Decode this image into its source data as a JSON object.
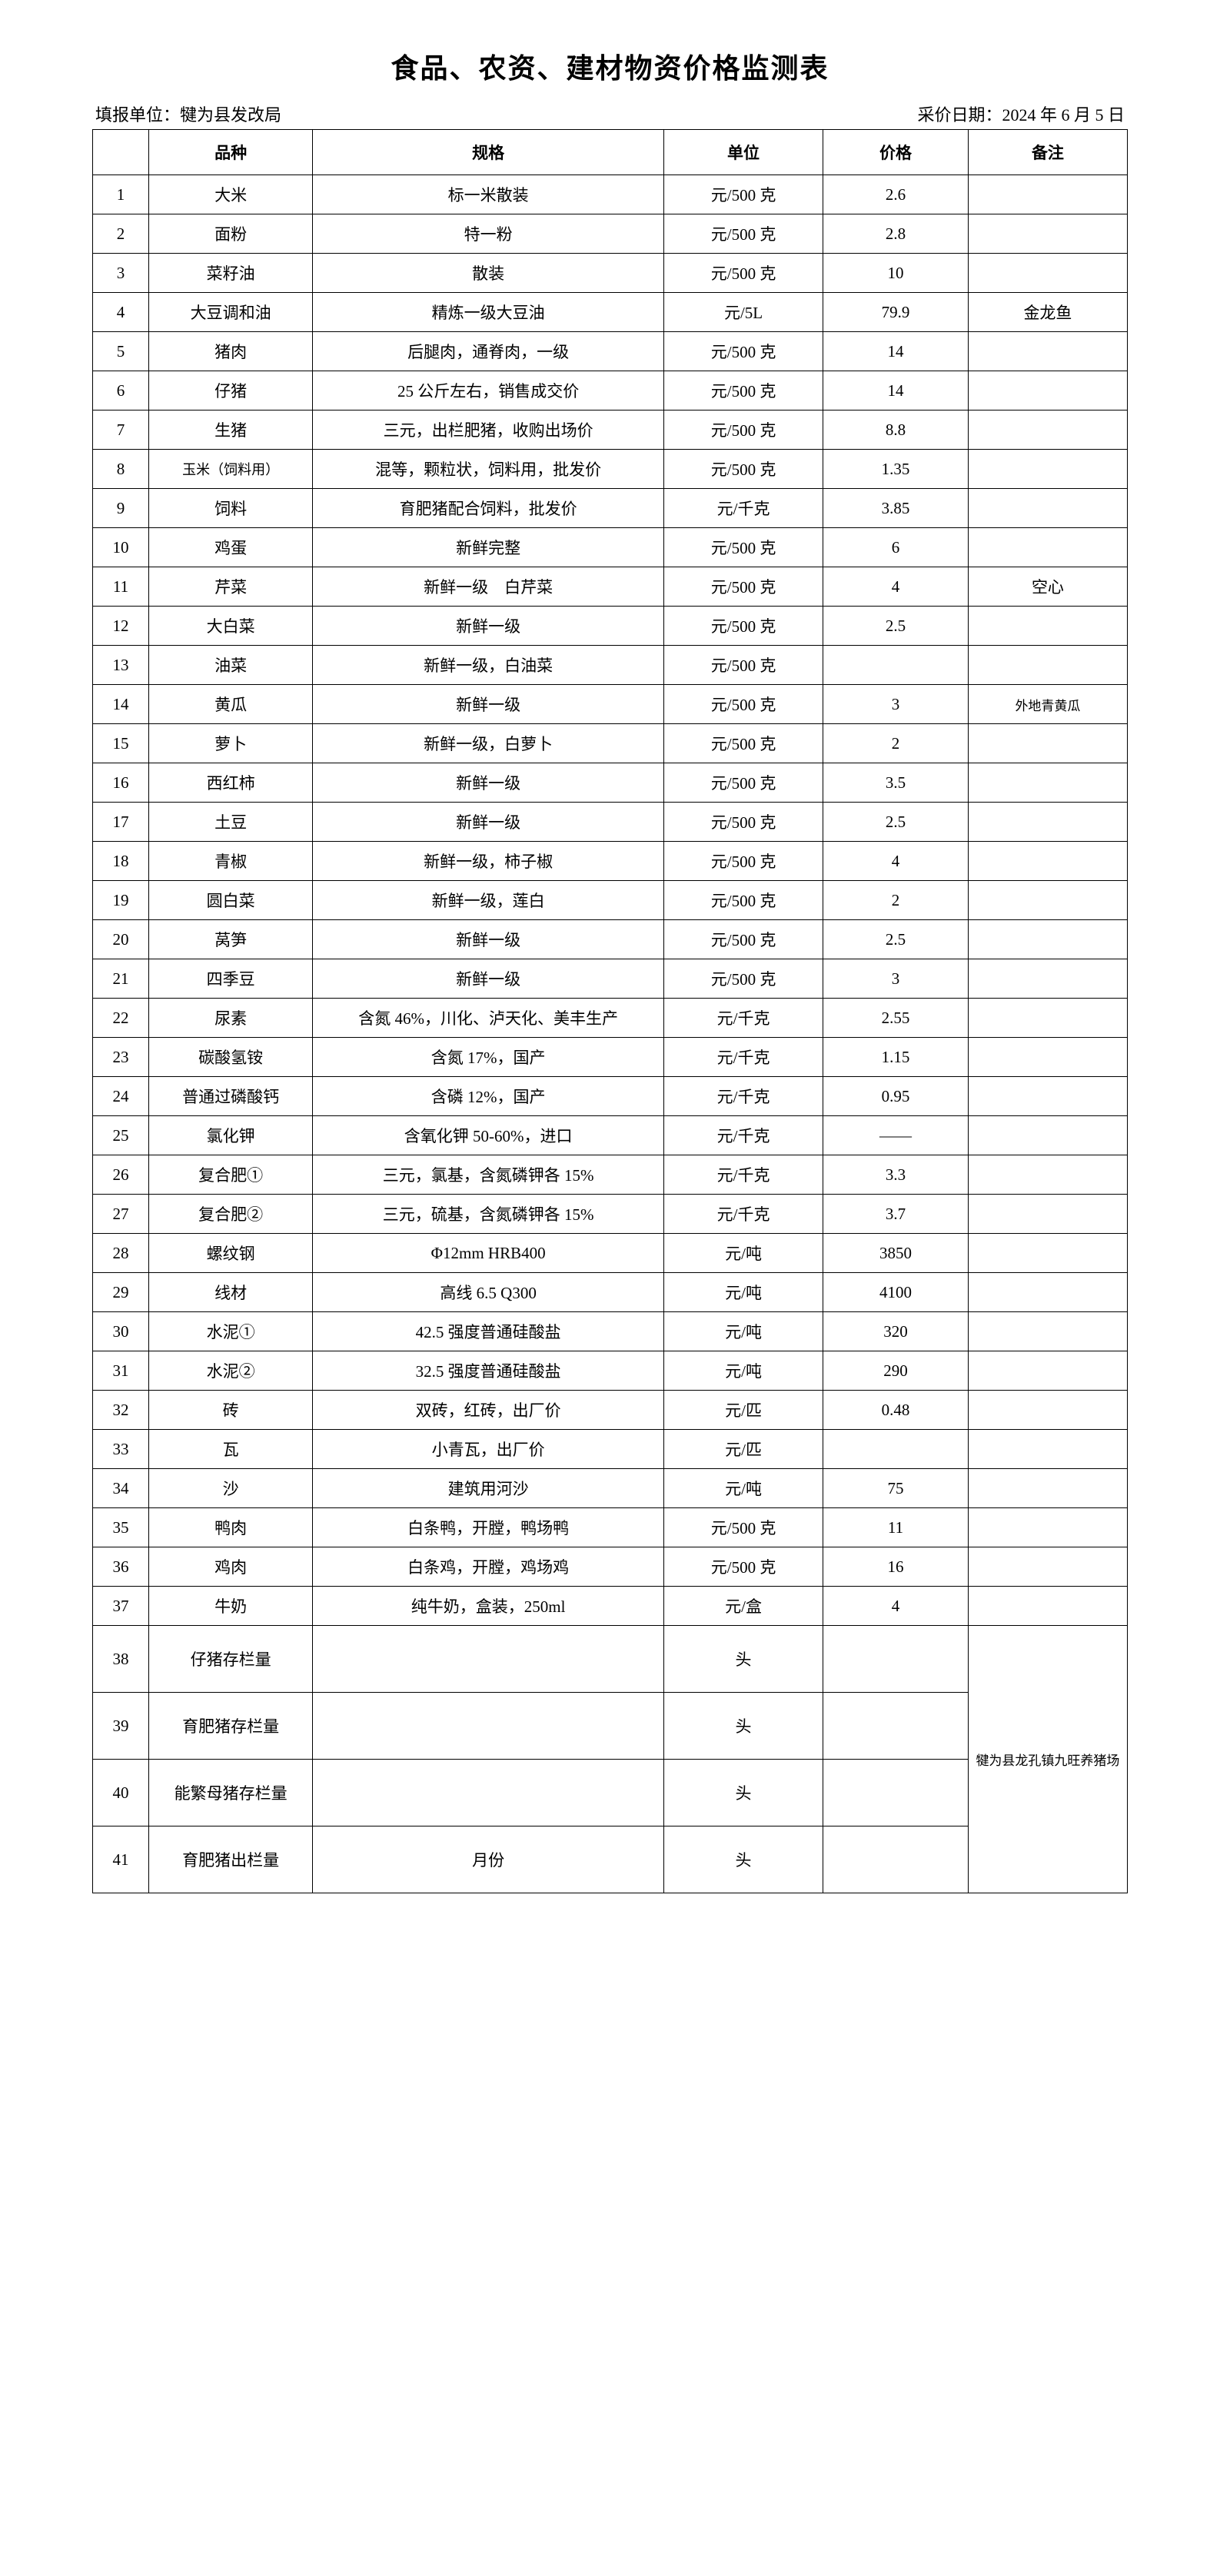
{
  "title": "食品、农资、建材物资价格监测表",
  "reporter_label": "填报单位：犍为县发改局",
  "date_label": "采价日期：2024 年 6 月 5 日",
  "headers": {
    "idx": "",
    "name": "品种",
    "spec": "规格",
    "unit": "单位",
    "price": "价格",
    "note": "备注"
  },
  "merged_note": "犍为县龙孔镇九旺养猪场",
  "rows": [
    {
      "idx": "1",
      "name": "大米",
      "spec": "标一米散装",
      "unit": "元/500 克",
      "price": "2.6",
      "note": ""
    },
    {
      "idx": "2",
      "name": "面粉",
      "spec": "特一粉",
      "unit": "元/500 克",
      "price": "2.8",
      "note": ""
    },
    {
      "idx": "3",
      "name": "菜籽油",
      "spec": "散装",
      "unit": "元/500 克",
      "price": "10",
      "note": ""
    },
    {
      "idx": "4",
      "name": "大豆调和油",
      "spec": "精炼一级大豆油",
      "unit": "元/5L",
      "price": "79.9",
      "note": "金龙鱼"
    },
    {
      "idx": "5",
      "name": "猪肉",
      "spec": "后腿肉，通脊肉，一级",
      "unit": "元/500 克",
      "price": "14",
      "note": ""
    },
    {
      "idx": "6",
      "name": "仔猪",
      "spec": "25 公斤左右，销售成交价",
      "unit": "元/500 克",
      "price": "14",
      "note": ""
    },
    {
      "idx": "7",
      "name": "生猪",
      "spec": "三元，出栏肥猪，收购出场价",
      "unit": "元/500 克",
      "price": "8.8",
      "note": ""
    },
    {
      "idx": "8",
      "name": "玉米（饲料用）",
      "spec": "混等，颗粒状，饲料用，批发价",
      "unit": "元/500 克",
      "price": "1.35",
      "note": "",
      "name_small": true
    },
    {
      "idx": "9",
      "name": "饲料",
      "spec": "育肥猪配合饲料，批发价",
      "unit": "元/千克",
      "price": "3.85",
      "note": ""
    },
    {
      "idx": "10",
      "name": "鸡蛋",
      "spec": "新鲜完整",
      "unit": "元/500 克",
      "price": "6",
      "note": ""
    },
    {
      "idx": "11",
      "name": "芹菜",
      "spec": "新鲜一级　白芹菜",
      "unit": "元/500 克",
      "price": "4",
      "note": "空心"
    },
    {
      "idx": "12",
      "name": "大白菜",
      "spec": "新鲜一级",
      "unit": "元/500 克",
      "price": "2.5",
      "note": ""
    },
    {
      "idx": "13",
      "name": "油菜",
      "spec": "新鲜一级，白油菜",
      "unit": "元/500 克",
      "price": "",
      "note": ""
    },
    {
      "idx": "14",
      "name": "黄瓜",
      "spec": "新鲜一级",
      "unit": "元/500 克",
      "price": "3",
      "note": "外地青黄瓜",
      "note_small": true
    },
    {
      "idx": "15",
      "name": "萝卜",
      "spec": "新鲜一级，白萝卜",
      "unit": "元/500 克",
      "price": "2",
      "note": ""
    },
    {
      "idx": "16",
      "name": "西红柿",
      "spec": "新鲜一级",
      "unit": "元/500 克",
      "price": "3.5",
      "note": ""
    },
    {
      "idx": "17",
      "name": "土豆",
      "spec": "新鲜一级",
      "unit": "元/500 克",
      "price": "2.5",
      "note": ""
    },
    {
      "idx": "18",
      "name": "青椒",
      "spec": "新鲜一级，柿子椒",
      "unit": "元/500 克",
      "price": "4",
      "note": ""
    },
    {
      "idx": "19",
      "name": "圆白菜",
      "spec": "新鲜一级，莲白",
      "unit": "元/500 克",
      "price": "2",
      "note": ""
    },
    {
      "idx": "20",
      "name": "莴笋",
      "spec": "新鲜一级",
      "unit": "元/500 克",
      "price": "2.5",
      "note": ""
    },
    {
      "idx": "21",
      "name": "四季豆",
      "spec": "新鲜一级",
      "unit": "元/500 克",
      "price": "3",
      "note": ""
    },
    {
      "idx": "22",
      "name": "尿素",
      "spec": "含氮 46%，川化、泸天化、美丰生产",
      "unit": "元/千克",
      "price": "2.55",
      "note": ""
    },
    {
      "idx": "23",
      "name": "碳酸氢铵",
      "spec": "含氮 17%，国产",
      "unit": "元/千克",
      "price": "1.15",
      "note": ""
    },
    {
      "idx": "24",
      "name": "普通过磷酸钙",
      "spec": "含磷 12%，国产",
      "unit": "元/千克",
      "price": "0.95",
      "note": ""
    },
    {
      "idx": "25",
      "name": "氯化钾",
      "spec": "含氧化钾 50-60%，进口",
      "unit": "元/千克",
      "price": "——",
      "note": ""
    },
    {
      "idx": "26",
      "name": "复合肥①",
      "spec": "三元，氯基，含氮磷钾各 15%",
      "unit": "元/千克",
      "price": "3.3",
      "note": ""
    },
    {
      "idx": "27",
      "name": "复合肥②",
      "spec": "三元，硫基，含氮磷钾各 15%",
      "unit": "元/千克",
      "price": "3.7",
      "note": ""
    },
    {
      "idx": "28",
      "name": "螺纹钢",
      "spec": "Φ12mm HRB400",
      "unit": "元/吨",
      "price": "3850",
      "note": ""
    },
    {
      "idx": "29",
      "name": "线材",
      "spec": "高线 6.5 Q300",
      "unit": "元/吨",
      "price": "4100",
      "note": ""
    },
    {
      "idx": "30",
      "name": "水泥①",
      "spec": "42.5 强度普通硅酸盐",
      "unit": "元/吨",
      "price": "320",
      "note": ""
    },
    {
      "idx": "31",
      "name": "水泥②",
      "spec": "32.5 强度普通硅酸盐",
      "unit": "元/吨",
      "price": "290",
      "note": ""
    },
    {
      "idx": "32",
      "name": "砖",
      "spec": "双砖，红砖，出厂价",
      "unit": "元/匹",
      "price": "0.48",
      "note": ""
    },
    {
      "idx": "33",
      "name": "瓦",
      "spec": "小青瓦，出厂价",
      "unit": "元/匹",
      "price": "",
      "note": ""
    },
    {
      "idx": "34",
      "name": "沙",
      "spec": "建筑用河沙",
      "unit": "元/吨",
      "price": "75",
      "note": ""
    },
    {
      "idx": "35",
      "name": "鸭肉",
      "spec": "白条鸭，开膛，鸭场鸭",
      "unit": "元/500 克",
      "price": "11",
      "note": ""
    },
    {
      "idx": "36",
      "name": "鸡肉",
      "spec": "白条鸡，开膛，鸡场鸡",
      "unit": "元/500 克",
      "price": "16",
      "note": ""
    },
    {
      "idx": "37",
      "name": "牛奶",
      "spec": "纯牛奶，盒装，250ml",
      "unit": "元/盒",
      "price": "4",
      "note": ""
    },
    {
      "idx": "38",
      "name": "仔猪存栏量",
      "spec": "",
      "unit": "头",
      "price": "",
      "merged": true,
      "tall": true
    },
    {
      "idx": "39",
      "name": "育肥猪存栏量",
      "spec": "",
      "unit": "头",
      "price": "",
      "merged": true,
      "tall": true
    },
    {
      "idx": "40",
      "name": "能繁母猪存栏量",
      "spec": "",
      "unit": "头",
      "price": "",
      "merged": true,
      "tall": true
    },
    {
      "idx": "41",
      "name": "育肥猪出栏量",
      "spec": "月份",
      "unit": "头",
      "price": "",
      "merged": true,
      "tall": true
    }
  ],
  "style": {
    "background_color": "#ffffff",
    "border_color": "#000000",
    "title_fontsize": 36,
    "header_fontsize": 22,
    "cell_fontsize": 21,
    "small_fontsize": 18
  }
}
